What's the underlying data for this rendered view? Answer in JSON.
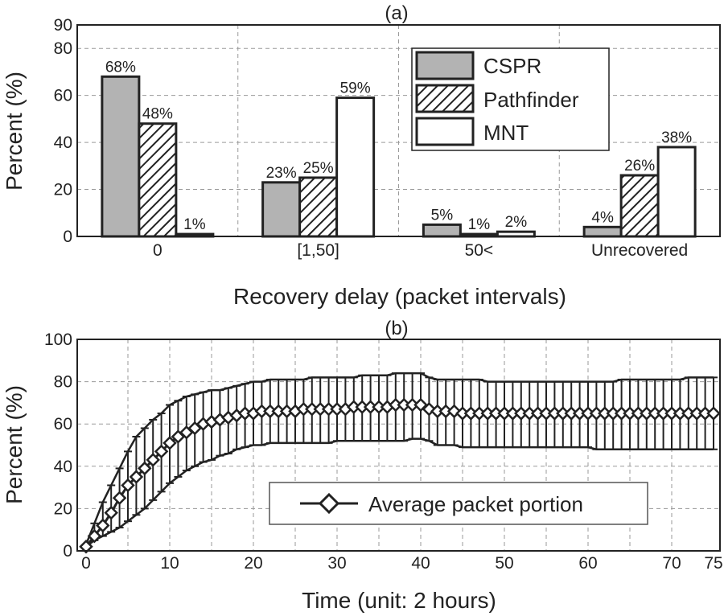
{
  "chart_data": [
    {
      "type": "bar",
      "title": "(a)",
      "xlabel": "Recovery delay (packet intervals)",
      "ylabel": "Percent (%)",
      "ylim": [
        0,
        90
      ],
      "yticks": [
        "0",
        "20",
        "40",
        "60",
        "80",
        "90"
      ],
      "categories": [
        "0",
        "[1,50]",
        "50<",
        "Unrecovered"
      ],
      "series": [
        {
          "name": "CSPR",
          "values": [
            68,
            23,
            5,
            4
          ],
          "labels": [
            "68%",
            "23%",
            "5%",
            "4%"
          ],
          "color": "#b3b3b3",
          "pattern": "solid"
        },
        {
          "name": "Pathfinder",
          "values": [
            48,
            25,
            1,
            26
          ],
          "labels": [
            "48%",
            "25%",
            "1%",
            "26%"
          ],
          "color": "#ffffff",
          "pattern": "hatch"
        },
        {
          "name": "MNT",
          "values": [
            1,
            59,
            2,
            38
          ],
          "labels": [
            "1%",
            "59%",
            "2%",
            "38%"
          ],
          "color": "#ffffff",
          "pattern": "none"
        }
      ],
      "legend": {
        "position": "top-right",
        "entries": [
          "CSPR",
          "Pathfinder",
          "MNT"
        ]
      },
      "grid": true
    },
    {
      "type": "line",
      "title": "(b)",
      "xlabel": "Time (unit: 2 hours)",
      "ylabel": "Percent (%)",
      "xlim": [
        0,
        75
      ],
      "ylim": [
        0,
        100
      ],
      "xticks": [
        "0",
        "10",
        "20",
        "30",
        "40",
        "50",
        "60",
        "70",
        "75"
      ],
      "yticks": [
        "0",
        "20",
        "40",
        "60",
        "80",
        "100"
      ],
      "legend": {
        "position": "bottom-center",
        "entries": [
          "Average packet portion"
        ]
      },
      "grid": true,
      "series": [
        {
          "name": "Average packet portion",
          "marker": "diamond",
          "x": [
            0,
            1,
            2,
            3,
            4,
            5,
            6,
            7,
            8,
            9,
            10,
            11,
            12,
            13,
            14,
            15,
            16,
            17,
            18,
            19,
            20,
            21,
            22,
            23,
            24,
            25,
            26,
            27,
            28,
            29,
            30,
            31,
            32,
            33,
            34,
            35,
            36,
            37,
            38,
            39,
            40,
            41,
            42,
            43,
            44,
            45,
            46,
            47,
            48,
            49,
            50,
            51,
            52,
            53,
            54,
            55,
            56,
            57,
            58,
            59,
            60,
            61,
            62,
            63,
            64,
            65,
            66,
            67,
            68,
            69,
            70,
            71,
            72,
            73,
            74,
            75
          ],
          "y": [
            2,
            7,
            12,
            18,
            25,
            31,
            35,
            39,
            43,
            47,
            51,
            54,
            56,
            58,
            60,
            61,
            62,
            63,
            64,
            65,
            65,
            66,
            66,
            66,
            66,
            66,
            67,
            67,
            67,
            67,
            67,
            67,
            68,
            68,
            68,
            68,
            68,
            69,
            69,
            69,
            69,
            67,
            66,
            66,
            66,
            65,
            65,
            65,
            65,
            65,
            65,
            65,
            65,
            65,
            65,
            65,
            65,
            65,
            65,
            65,
            65,
            65,
            65,
            65,
            65,
            65,
            65,
            65,
            65,
            65,
            65,
            65,
            65,
            65,
            65,
            65
          ],
          "err_low": [
            2,
            5,
            7,
            9,
            11,
            14,
            17,
            20,
            24,
            28,
            32,
            35,
            38,
            40,
            42,
            43,
            45,
            46,
            48,
            49,
            50,
            50,
            51,
            51,
            51,
            51,
            51,
            51,
            51,
            51,
            52,
            52,
            52,
            52,
            52,
            52,
            52,
            52,
            52,
            53,
            53,
            52,
            50,
            50,
            50,
            49,
            49,
            49,
            49,
            49,
            49,
            49,
            49,
            49,
            49,
            49,
            49,
            49,
            49,
            49,
            49,
            48,
            48,
            48,
            48,
            48,
            48,
            48,
            48,
            48,
            48,
            48,
            48,
            48,
            48,
            48
          ],
          "err_high": [
            3,
            13,
            23,
            31,
            39,
            47,
            54,
            58,
            62,
            65,
            69,
            71,
            73,
            74,
            75,
            76,
            76,
            77,
            78,
            79,
            80,
            80,
            81,
            81,
            81,
            81,
            81,
            82,
            82,
            82,
            82,
            82,
            82,
            83,
            83,
            83,
            83,
            84,
            84,
            84,
            84,
            82,
            81,
            81,
            81,
            81,
            81,
            81,
            80,
            80,
            80,
            80,
            80,
            80,
            80,
            80,
            80,
            80,
            80,
            80,
            80,
            80,
            80,
            80,
            81,
            81,
            81,
            81,
            81,
            81,
            81,
            81,
            82,
            82,
            82,
            82
          ]
        }
      ]
    }
  ]
}
